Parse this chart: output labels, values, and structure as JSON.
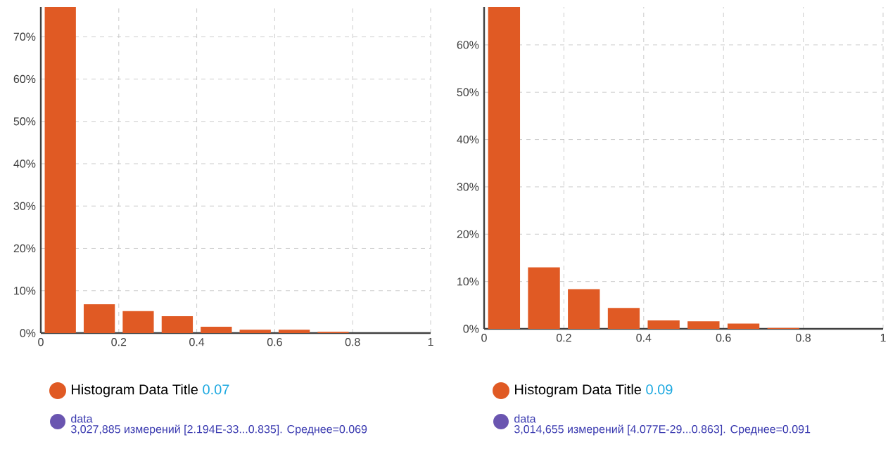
{
  "chart_data": [
    {
      "type": "histogram",
      "bins": [
        0,
        0.1,
        0.2,
        0.3,
        0.4,
        0.5,
        0.6,
        0.7,
        0.8
      ],
      "series": [
        {
          "name": "Histogram Data Title",
          "color": "#e05a24",
          "values": [
            77,
            6.8,
            5.2,
            4.0,
            1.5,
            0.8,
            0.8,
            0.3
          ]
        }
      ],
      "xlim": [
        0,
        1
      ],
      "ylim": [
        0,
        77
      ],
      "xticks": [
        0,
        0.2,
        0.4,
        0.6,
        0.8,
        1
      ],
      "yticks": [
        {
          "value": 0,
          "label": "0%"
        },
        {
          "value": 10,
          "label": "10%"
        },
        {
          "value": 20,
          "label": "20%"
        },
        {
          "value": 30,
          "label": "30%"
        },
        {
          "value": 40,
          "label": "40%"
        },
        {
          "value": 50,
          "label": "50%"
        },
        {
          "value": 60,
          "label": "60%"
        },
        {
          "value": 70,
          "label": "70%"
        }
      ],
      "grid": true,
      "legend": "bottom",
      "annotations": [
        "0.07",
        "data",
        "3,027,885 измерений [2.194E-33...0.835]. Среднее=0.069"
      ]
    },
    {
      "type": "histogram",
      "bins": [
        0,
        0.1,
        0.2,
        0.3,
        0.4,
        0.5,
        0.6,
        0.7,
        0.8
      ],
      "series": [
        {
          "name": "Histogram Data Title",
          "color": "#e05a24",
          "values": [
            68,
            13.0,
            8.4,
            4.4,
            1.8,
            1.6,
            1.1,
            0.2
          ]
        }
      ],
      "xlim": [
        0,
        1
      ],
      "ylim": [
        0,
        68
      ],
      "xticks": [
        0,
        0.2,
        0.4,
        0.6,
        0.8,
        1
      ],
      "yticks": [
        {
          "value": 0,
          "label": "0%"
        },
        {
          "value": 10,
          "label": "10%"
        },
        {
          "value": 20,
          "label": "20%"
        },
        {
          "value": 30,
          "label": "30%"
        },
        {
          "value": 40,
          "label": "40%"
        },
        {
          "value": 50,
          "label": "50%"
        },
        {
          "value": 60,
          "label": "60%"
        }
      ],
      "grid": true,
      "legend": "bottom",
      "annotations": [
        "0.09",
        "data",
        "3,014,655 измерений [4.077E-29...0.863]. Среднее=0.091"
      ]
    }
  ]
}
